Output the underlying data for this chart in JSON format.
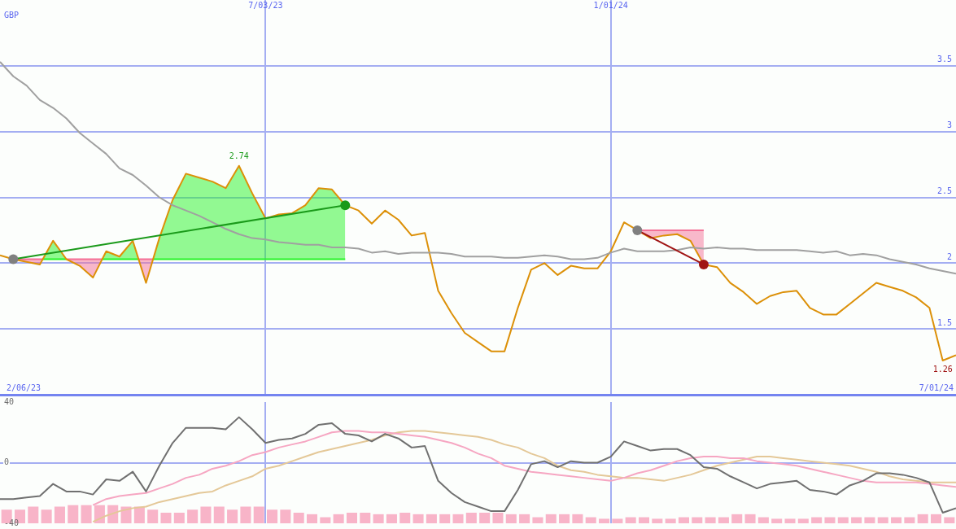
{
  "chart_data": [
    {
      "type": "line",
      "ylabel": "GBP",
      "x": [
        "2023-02-13",
        "2023-02-20",
        "2023-02-27",
        "2023-03-06",
        "2023-03-13",
        "2023-03-20",
        "2023-03-27",
        "2023-04-03",
        "2023-04-10",
        "2023-04-17",
        "2023-04-24",
        "2023-05-01",
        "2023-05-08",
        "2023-05-15",
        "2023-05-22",
        "2023-05-29",
        "2023-06-05",
        "2023-06-12",
        "2023-06-19",
        "2023-06-26",
        "2023-07-03",
        "2023-07-10",
        "2023-07-17",
        "2023-07-24",
        "2023-07-31",
        "2023-08-07",
        "2023-08-14",
        "2023-08-21",
        "2023-08-28",
        "2023-09-04",
        "2023-09-11",
        "2023-09-18",
        "2023-09-25",
        "2023-10-02",
        "2023-10-09",
        "2023-10-16",
        "2023-10-23",
        "2023-10-30",
        "2023-11-06",
        "2023-11-13",
        "2023-11-20",
        "2023-11-27",
        "2023-12-04",
        "2023-12-11",
        "2023-12-18",
        "2023-12-25",
        "2024-01-01",
        "2024-01-08",
        "2024-01-15",
        "2024-01-22",
        "2024-01-29",
        "2024-02-05",
        "2024-02-12",
        "2024-02-19",
        "2024-02-26",
        "2024-03-04",
        "2024-03-11",
        "2024-03-18",
        "2024-03-25",
        "2024-04-01",
        "2024-04-08",
        "2024-04-15",
        "2024-04-22",
        "2024-04-29",
        "2024-05-06",
        "2024-05-13",
        "2024-05-20",
        "2024-05-27",
        "2024-06-03",
        "2024-06-10",
        "2024-06-17",
        "2024-06-24",
        "2024-07-01"
      ],
      "xlim": [
        "2023-02-13",
        "2024-07-01"
      ],
      "xticks": [
        {
          "value": "2023-07-03",
          "label": "7/03/23"
        },
        {
          "value": "2024-01-01",
          "label": "1/01/24"
        }
      ],
      "ylim": [
        1,
        4
      ],
      "yticks": [
        1.5,
        2,
        2.5,
        3,
        3.5
      ],
      "grid": true,
      "annotations": [
        {
          "text": "2.74",
          "x": "2023-06-19",
          "y": 2.74
        },
        {
          "text": "1.26",
          "x": "2024-06-24",
          "y": 1.26
        },
        "2/06/23",
        "7/01/24"
      ],
      "series": [
        {
          "type": "line",
          "color": "#f46c94",
          "x": [
            "2023-02-20",
            "2023-02-27",
            "2023-03-06",
            "2023-03-07T13:00"
          ],
          "values": [
            2.03,
            2.03,
            2.03,
            2.03
          ],
          "lower": [
            2.03,
            2.01,
            1.99,
            2.03
          ],
          "upper": [
            2.03,
            2.03,
            2.03,
            2.03
          ]
        },
        {
          "type": "line",
          "color": "#24f424",
          "x": [
            "2023-03-07T13:00",
            "2023-03-13",
            "2023-03-20"
          ],
          "values": [
            2.03,
            2.03,
            2.03
          ],
          "lower": [
            2.03,
            2.03,
            2.03
          ],
          "upper": [
            2.03,
            2.17,
            2.03
          ]
        },
        {
          "type": "line",
          "color": "#f46e95",
          "x": [
            "2023-03-20",
            "2023-03-27",
            "2023-04-03",
            "2023-04-07T22:00"
          ],
          "values": [
            2.03,
            2.03,
            2.03,
            2.03
          ],
          "lower": [
            2.03,
            1.98,
            1.89,
            2.03
          ],
          "upper": [
            2.03,
            2.03,
            2.03,
            2.03
          ]
        },
        {
          "type": "line",
          "color": "#26f426",
          "x": [
            "2023-04-07T22:00",
            "2023-04-10",
            "2023-04-17",
            "2023-04-24",
            "2023-04-27T02:00"
          ],
          "values": [
            2.03,
            2.03,
            2.03,
            2.03,
            2.03
          ],
          "lower": [
            2.03,
            2.03,
            2.03,
            2.03,
            2.03
          ],
          "upper": [
            2.03,
            2.09,
            2.05,
            2.17,
            2.03
          ]
        },
        {
          "type": "line",
          "color": "#f47096",
          "x": [
            "2023-04-27T02:00",
            "2023-05-01",
            "2023-05-04T17:00"
          ],
          "values": [
            2.03,
            2.03,
            2.03
          ],
          "lower": [
            2.03,
            1.85,
            2.03
          ],
          "upper": [
            2.03,
            2.03,
            2.03
          ]
        },
        {
          "type": "line",
          "color": "#28f428",
          "x": [
            "2023-05-04T17:00",
            "2023-05-08",
            "2023-05-15",
            "2023-05-22",
            "2023-05-29",
            "2023-06-05",
            "2023-06-12",
            "2023-06-19",
            "2023-06-26",
            "2023-07-03",
            "2023-07-10",
            "2023-07-17",
            "2023-07-24",
            "2023-07-31",
            "2023-08-07",
            "2023-08-14"
          ],
          "values": [
            2.03,
            2.03,
            2.03,
            2.03,
            2.03,
            2.03,
            2.03,
            2.03,
            2.03,
            2.03,
            2.03,
            2.03,
            2.03,
            2.03,
            2.03,
            2.03
          ],
          "lower": [
            2.03,
            2.03,
            2.03,
            2.03,
            2.03,
            2.03,
            2.03,
            2.03,
            2.03,
            2.03,
            2.03,
            2.03,
            2.03,
            2.03,
            2.03,
            2.03
          ],
          "upper": [
            2.03,
            2.19,
            2.48,
            2.68,
            2.65,
            2.62,
            2.57,
            2.74,
            2.53,
            2.34,
            2.37,
            2.38,
            2.44,
            2.57,
            2.56,
            2.44
          ]
        },
        {
          "type": "line",
          "color": "#f47297",
          "x": [
            "2024-01-15",
            "2024-01-22",
            "2024-01-29",
            "2024-02-05",
            "2024-02-12",
            "2024-02-19"
          ],
          "values": [
            2.25,
            2.25,
            2.25,
            2.25,
            2.25,
            2.25
          ],
          "lower": [
            2.25,
            2.19,
            2.21,
            2.22,
            2.17,
            1.99
          ],
          "upper": [
            2.25,
            2.25,
            2.25,
            2.25,
            2.25,
            2.25
          ]
        },
        {
          "color": "#a0a0a0",
          "values": [
            3.53,
            3.42,
            3.35,
            3.24,
            3.18,
            3.1,
            2.99,
            2.91,
            2.83,
            2.72,
            2.67,
            2.59,
            2.5,
            2.44,
            2.4,
            2.36,
            2.31,
            2.26,
            2.22,
            2.19,
            2.18,
            2.16,
            2.15,
            2.14,
            2.14,
            2.12,
            2.12,
            2.11,
            2.08,
            2.09,
            2.07,
            2.08,
            2.08,
            2.08,
            2.07,
            2.05,
            2.05,
            2.05,
            2.04,
            2.04,
            2.05,
            2.06,
            2.05,
            2.03,
            2.03,
            2.04,
            2.08,
            2.11,
            2.09,
            2.09,
            2.09,
            2.1,
            2.12,
            2.11,
            2.12,
            2.11,
            2.11,
            2.1,
            2.1,
            2.1,
            2.1,
            2.09,
            2.08,
            2.09,
            2.06,
            2.07,
            2.06,
            2.03,
            2.01,
            1.99,
            1.96,
            1.94,
            1.92
          ]
        },
        {
          "color": "#dc9008",
          "values": [
            2.06,
            2.03,
            2.01,
            1.99,
            2.17,
            2.03,
            1.98,
            1.89,
            2.09,
            2.05,
            2.17,
            1.85,
            2.19,
            2.48,
            2.68,
            2.65,
            2.62,
            2.57,
            2.74,
            2.53,
            2.34,
            2.37,
            2.38,
            2.44,
            2.57,
            2.56,
            2.44,
            2.4,
            2.3,
            2.4,
            2.33,
            2.21,
            2.23,
            1.79,
            1.62,
            1.47,
            1.4,
            1.33,
            1.33,
            1.66,
            1.95,
            2.0,
            1.91,
            1.98,
            1.96,
            1.96,
            2.09,
            2.31,
            2.25,
            2.19,
            2.21,
            2.22,
            2.17,
            1.99,
            1.97,
            1.85,
            1.78,
            1.69,
            1.75,
            1.78,
            1.79,
            1.66,
            1.61,
            1.61,
            1.69,
            1.77,
            1.85,
            1.82,
            1.79,
            1.74,
            1.66,
            1.26,
            1.3
          ]
        },
        {
          "type": "line",
          "color": "#1a9a1a",
          "marker": "circle",
          "colors": [
            "#808080",
            "#1a9a1a"
          ],
          "x": [
            "2023-02-20",
            "2023-08-14"
          ],
          "values": [
            2.03,
            2.44
          ]
        },
        {
          "type": "line",
          "color": "#a01414",
          "marker": "circle",
          "colors": [
            "#808080",
            "#a01414"
          ],
          "x": [
            "2024-01-15",
            "2024-02-19"
          ],
          "values": [
            2.25,
            1.99
          ]
        }
      ]
    },
    {
      "type": "line",
      "tick_labels": "y",
      "x": [
        "2023-02-13",
        "2023-02-20",
        "2023-02-27",
        "2023-03-06",
        "2023-03-13",
        "2023-03-20",
        "2023-03-27",
        "2023-04-03",
        "2023-04-10",
        "2023-04-17",
        "2023-04-24",
        "2023-05-01",
        "2023-05-08",
        "2023-05-15",
        "2023-05-22",
        "2023-05-29",
        "2023-06-05",
        "2023-06-12",
        "2023-06-19",
        "2023-06-26",
        "2023-07-03",
        "2023-07-10",
        "2023-07-17",
        "2023-07-24",
        "2023-07-31",
        "2023-08-07",
        "2023-08-14",
        "2023-08-21",
        "2023-08-28",
        "2023-09-04",
        "2023-09-11",
        "2023-09-18",
        "2023-09-25",
        "2023-10-02",
        "2023-10-09",
        "2023-10-16",
        "2023-10-23",
        "2023-10-30",
        "2023-11-06",
        "2023-11-13",
        "2023-11-20",
        "2023-11-27",
        "2023-12-04",
        "2023-12-11",
        "2023-12-18",
        "2023-12-25",
        "2024-01-01",
        "2024-01-08",
        "2024-01-15",
        "2024-01-22",
        "2024-01-29",
        "2024-02-05",
        "2024-02-12",
        "2024-02-19",
        "2024-02-26",
        "2024-03-04",
        "2024-03-11",
        "2024-03-18",
        "2024-03-25",
        "2024-04-01",
        "2024-04-08",
        "2024-04-15",
        "2024-04-22",
        "2024-04-29",
        "2024-05-06",
        "2024-05-13",
        "2024-05-20",
        "2024-05-27",
        "2024-06-03",
        "2024-06-10",
        "2024-06-17",
        "2024-06-24",
        "2024-07-01"
      ],
      "xlim": [
        "2023-02-13",
        "2024-07-01"
      ],
      "xticks": [
        {
          "value": "2023-07-03",
          "label": null
        },
        {
          "value": "2024-01-01",
          "label": null
        }
      ],
      "ylim": [
        -40,
        40
      ],
      "yticks": [
        -40,
        0,
        40
      ],
      "grid": true,
      "series": [
        {
          "type": "bar",
          "color": "#f8b4c8",
          "x": [
            "2023-02-16T12:00",
            "2023-02-23T12:00",
            "2023-03-02T12:00",
            "2023-03-09T12:00",
            "2023-03-16T12:00",
            "2023-03-23T12:00",
            "2023-03-30T12:00",
            "2023-04-06T12:00",
            "2023-04-13T12:00",
            "2023-04-20T12:00",
            "2023-04-27T12:00",
            "2023-05-04T12:00",
            "2023-05-11T12:00",
            "2023-05-18T12:00",
            "2023-05-25T12:00",
            "2023-06-01T12:00",
            "2023-06-08T12:00",
            "2023-06-15T12:00",
            "2023-06-22T12:00",
            "2023-06-29T12:00",
            "2023-07-06T12:00",
            "2023-07-13T12:00",
            "2023-07-20T12:00",
            "2023-07-27T12:00",
            "2023-08-03T12:00",
            "2023-08-10T12:00",
            "2023-08-17T12:00",
            "2023-08-24T12:00",
            "2023-08-31T12:00",
            "2023-09-07T12:00",
            "2023-09-14T12:00",
            "2023-09-21T12:00",
            "2023-09-28T12:00",
            "2023-10-05T12:00",
            "2023-10-12T12:00",
            "2023-10-19T12:00",
            "2023-10-26T12:00",
            "2023-11-02T12:00",
            "2023-11-09T12:00",
            "2023-11-16T12:00",
            "2023-11-23T12:00",
            "2023-11-30T12:00",
            "2023-12-07T12:00",
            "2023-12-14T12:00",
            "2023-12-21T12:00",
            "2023-12-28T12:00",
            "2024-01-04T12:00",
            "2024-01-11T12:00",
            "2024-01-18T12:00",
            "2024-01-25T12:00",
            "2024-02-01T12:00",
            "2024-02-08T12:00",
            "2024-02-15T12:00",
            "2024-02-22T12:00",
            "2024-02-29T12:00",
            "2024-03-07T12:00",
            "2024-03-14T12:00",
            "2024-03-21T12:00",
            "2024-03-28T12:00",
            "2024-04-04T12:00",
            "2024-04-11T12:00",
            "2024-04-18T12:00",
            "2024-04-25T12:00",
            "2024-05-02T12:00",
            "2024-05-09T12:00",
            "2024-05-16T12:00",
            "2024-05-23T12:00",
            "2024-05-30T12:00",
            "2024-06-06T12:00",
            "2024-06-13T12:00",
            "2024-06-20T12:00",
            "2024-06-27T12:00"
          ],
          "values": [
            9,
            9,
            11,
            9,
            11,
            12,
            12,
            12,
            12,
            11,
            11,
            9,
            7,
            7,
            9,
            11,
            11,
            9,
            11,
            11,
            9,
            9,
            7,
            6,
            4,
            6,
            7,
            7,
            6,
            6,
            7,
            6,
            6,
            6,
            6,
            7,
            7,
            7,
            6,
            6,
            4,
            6,
            6,
            6,
            4,
            3,
            3,
            4,
            4,
            3,
            3,
            4,
            4,
            4,
            4,
            6,
            6,
            4,
            3,
            3,
            3,
            4,
            4,
            4,
            4,
            4,
            4,
            4,
            4,
            6,
            6,
            4
          ],
          "base": [
            -40,
            -40,
            -40,
            -40,
            -40,
            -40,
            -40,
            -40,
            -40,
            -40,
            -40,
            -40,
            -40,
            -40,
            -40,
            -40,
            -40,
            -40,
            -40,
            -40,
            -40,
            -40,
            -40,
            -40,
            -40,
            -40,
            -40,
            -40,
            -40,
            -40,
            -40,
            -40,
            -40,
            -40,
            -40,
            -40,
            -40,
            -40,
            -40,
            -40,
            -40,
            -40,
            -40,
            -40,
            -40,
            -40,
            -40,
            -40,
            -40,
            -40,
            -40,
            -40,
            -40,
            -40,
            -40,
            -40,
            -40,
            -40,
            -40,
            -40,
            -40,
            -40,
            -40,
            -40,
            -40,
            -40,
            -40,
            -40,
            -40,
            -40,
            -40,
            -40
          ]
        },
        {
          "color": "#707070",
          "values": [
            -24,
            -24,
            -23,
            -22,
            -14,
            -19,
            -19,
            -21,
            -11,
            -12,
            -6,
            -19,
            -2,
            13,
            23,
            23,
            23,
            22,
            30,
            22,
            13,
            15,
            16,
            19,
            25,
            26,
            19,
            18,
            14,
            19,
            16,
            10,
            11,
            -12,
            -20,
            -26,
            -29,
            -32,
            -32,
            -18,
            -1,
            1,
            -3,
            1,
            0,
            0,
            4,
            14,
            11,
            8,
            9,
            9,
            5,
            -3,
            -4,
            -9,
            -13,
            -17,
            -14,
            -13,
            -12,
            -18,
            -19,
            -21,
            -15,
            -12,
            -7,
            -7,
            -8,
            -10,
            -13,
            -33,
            -30
          ]
        },
        {
          "color": "#f6a6c2",
          "values": [
            null,
            null,
            null,
            null,
            null,
            null,
            null,
            -28,
            -24,
            -22,
            -21,
            -20,
            -17,
            -14,
            -10,
            -8,
            -4,
            -2,
            1,
            5,
            7,
            10,
            12,
            14,
            17,
            20,
            21,
            21,
            20,
            20,
            19,
            18,
            17,
            15,
            13,
            10,
            6,
            3,
            -2,
            -4,
            -6,
            -7,
            -8,
            -9,
            -10,
            -11,
            -12,
            -10,
            -7,
            -5,
            -2,
            1,
            3,
            4,
            4,
            3,
            3,
            1,
            0,
            -1,
            -2,
            -4,
            -6,
            -8,
            -10,
            -12,
            -13,
            -13,
            -13,
            -13,
            -14,
            -15,
            -16
          ]
        },
        {
          "color": "#e4c898",
          "values": [
            null,
            null,
            null,
            null,
            null,
            null,
            null,
            -39,
            -35,
            -32,
            -30,
            -29,
            -26,
            -24,
            -22,
            -20,
            -19,
            -15,
            -12,
            -9,
            -4,
            -2,
            1,
            4,
            7,
            9,
            11,
            13,
            15,
            18,
            20,
            21,
            21,
            20,
            19,
            18,
            17,
            15,
            12,
            10,
            6,
            3,
            -2,
            -5,
            -6,
            -8,
            -9,
            -10,
            -10,
            -11,
            -12,
            -10,
            -8,
            -5,
            -2,
            0,
            2,
            4,
            4,
            3,
            2,
            1,
            0,
            -1,
            -2,
            -4,
            -6,
            -9,
            -11,
            -12,
            -13,
            -13,
            -13
          ]
        }
      ]
    }
  ]
}
